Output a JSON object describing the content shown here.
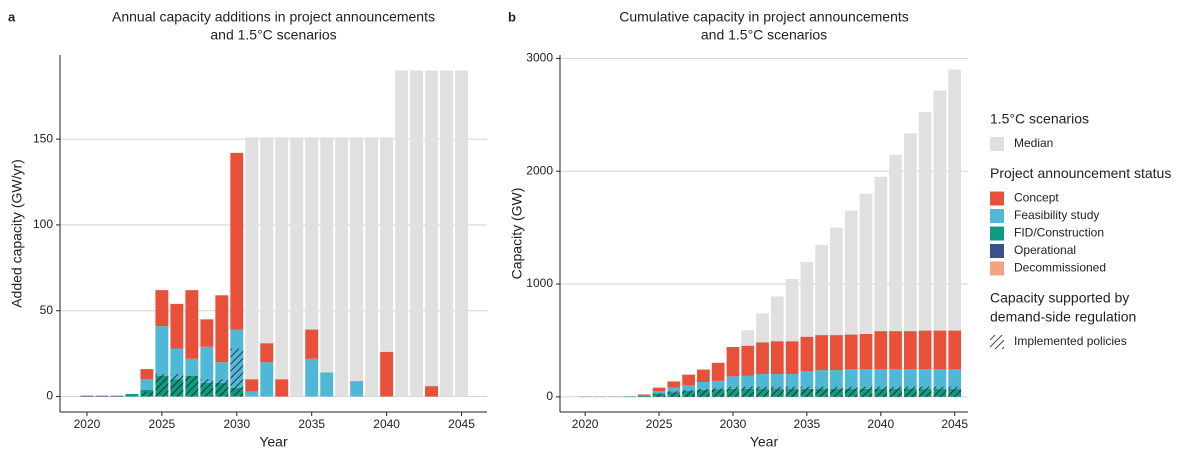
{
  "chart_data": [
    {
      "type": "bar",
      "label": "a",
      "title": [
        "Annual capacity additions in project announcements",
        "and 1.5°C scenarios"
      ],
      "x_label": "Year",
      "y_label": "Added capacity (GW/yr)",
      "x": [
        2020,
        2021,
        2022,
        2023,
        2024,
        2025,
        2026,
        2027,
        2028,
        2029,
        2030,
        2031,
        2032,
        2033,
        2034,
        2035,
        2036,
        2037,
        2038,
        2039,
        2040,
        2041,
        2042,
        2043,
        2044,
        2045
      ],
      "xlim": [
        2018.2,
        2046.7
      ],
      "xticks": [
        2020,
        2025,
        2030,
        2035,
        2040,
        2045
      ],
      "ylim": [
        -9,
        199
      ],
      "yticks": [
        0,
        50,
        100,
        150
      ],
      "grid": true,
      "series": [
        {
          "name": "Median",
          "color": "#e0e0e0",
          "overlay": true,
          "values": [
            null,
            null,
            null,
            null,
            null,
            null,
            null,
            null,
            null,
            null,
            null,
            151,
            151,
            151,
            151,
            151,
            151,
            151,
            151,
            151,
            151,
            190,
            190,
            190,
            190,
            190
          ]
        },
        {
          "name": "Concept",
          "color": "#e8503a",
          "values": [
            0,
            0,
            0,
            0,
            6,
            21,
            26,
            40,
            16,
            39,
            103,
            7,
            11,
            10,
            0,
            17,
            0,
            0,
            0,
            0,
            26,
            0,
            0,
            6,
            0,
            0
          ]
        },
        {
          "name": "Feasibility study",
          "color": "#4fb8d6",
          "values": [
            0,
            0,
            0,
            0,
            6,
            29,
            18,
            10,
            21,
            12,
            34,
            3,
            20,
            0,
            0,
            22,
            14,
            0,
            9,
            0,
            0,
            0,
            0,
            0,
            0,
            0
          ]
        },
        {
          "name": "FID/Construction",
          "color": "#0e9b82",
          "values": [
            0,
            0,
            0,
            1.5,
            4,
            12,
            10,
            12,
            8,
            8,
            5,
            0,
            0,
            0,
            0,
            0,
            0,
            0,
            0,
            0,
            0,
            0,
            0,
            0,
            0,
            0
          ]
        },
        {
          "name": "Operational",
          "color": "#3b4f8a",
          "values": [
            0.5,
            0.5,
            0.5,
            0,
            0,
            0,
            0,
            0,
            0,
            0,
            0,
            0,
            0,
            0,
            0,
            0,
            0,
            0,
            0,
            0,
            0,
            0,
            0,
            0,
            0,
            0
          ]
        },
        {
          "name": "Decommissioned",
          "color": "#f3a284",
          "values": [
            0,
            0,
            0,
            0,
            0,
            0,
            0,
            0,
            0,
            0,
            0,
            0,
            0,
            0,
            0,
            0,
            0,
            0,
            0,
            0,
            0,
            0,
            0,
            0,
            0,
            0
          ]
        },
        {
          "name": "Implemented policies",
          "color": "#1a1a1a",
          "pattern": "hatch",
          "overlay": true,
          "values": [
            null,
            null,
            null,
            null,
            3,
            13,
            13,
            12,
            10,
            10,
            28,
            null,
            null,
            null,
            null,
            null,
            null,
            null,
            null,
            null,
            null,
            null,
            null,
            null,
            null,
            null
          ]
        }
      ]
    },
    {
      "type": "bar",
      "label": "b",
      "title": [
        "Cumulative capacity in project announcements",
        "and 1.5°C scenarios"
      ],
      "x_label": "Year",
      "y_label": "Capacity (GW)",
      "x": [
        2020,
        2021,
        2022,
        2023,
        2024,
        2025,
        2026,
        2027,
        2028,
        2029,
        2030,
        2031,
        2032,
        2033,
        2034,
        2035,
        2036,
        2037,
        2038,
        2039,
        2040,
        2041,
        2042,
        2043,
        2044,
        2045
      ],
      "xlim": [
        2018.3,
        2045.9
      ],
      "xticks": [
        2020,
        2025,
        2030,
        2035,
        2040,
        2045
      ],
      "ylim": [
        -134,
        3030
      ],
      "yticks": [
        0,
        1000,
        2000,
        3000
      ],
      "grid": true,
      "series": [
        {
          "name": "Median",
          "color": "#e0e0e0",
          "overlay": true,
          "values": [
            null,
            null,
            null,
            null,
            null,
            null,
            null,
            null,
            null,
            null,
            null,
            590,
            740,
            890,
            1045,
            1195,
            1345,
            1500,
            1650,
            1800,
            1950,
            2145,
            2335,
            2525,
            2715,
            2900
          ]
        },
        {
          "name": "Concept",
          "color": "#e8503a",
          "values": [
            0,
            0,
            0,
            0,
            5,
            30,
            55,
            95,
            110,
            160,
            260,
            265,
            280,
            290,
            290,
            305,
            310,
            310,
            305,
            310,
            335,
            335,
            335,
            340,
            340,
            340
          ]
        },
        {
          "name": "Feasibility study",
          "color": "#4fb8d6",
          "values": [
            0,
            0,
            0,
            0,
            5,
            20,
            40,
            50,
            70,
            75,
            110,
            115,
            130,
            130,
            130,
            155,
            165,
            165,
            175,
            175,
            175,
            175,
            175,
            175,
            175,
            175
          ]
        },
        {
          "name": "FID/Construction",
          "color": "#0e9b82",
          "values": [
            0,
            0,
            0,
            3,
            10,
            30,
            40,
            50,
            60,
            65,
            70,
            70,
            70,
            70,
            70,
            70,
            70,
            70,
            70,
            70,
            70,
            70,
            70,
            70,
            70,
            70
          ]
        },
        {
          "name": "Operational",
          "color": "#3b4f8a",
          "values": [
            2,
            2,
            2,
            2,
            2,
            2,
            2,
            2,
            2,
            2,
            2,
            2,
            2,
            2,
            2,
            2,
            2,
            2,
            2,
            2,
            2,
            2,
            2,
            2,
            2,
            2
          ]
        },
        {
          "name": "Decommissioned",
          "color": "#f3a284",
          "values": [
            0,
            0,
            0,
            0,
            0,
            0,
            0,
            0,
            0,
            0,
            0,
            0,
            0,
            0,
            0,
            0,
            0,
            0,
            0,
            0,
            0,
            0,
            0,
            0,
            0,
            0
          ]
        },
        {
          "name": "Implemented policies",
          "color": "#1a1a1a",
          "pattern": "hatch",
          "overlay": true,
          "values": [
            null,
            null,
            null,
            null,
            null,
            30,
            50,
            60,
            70,
            75,
            90,
            90,
            90,
            90,
            90,
            90,
            90,
            90,
            90,
            90,
            90,
            90,
            90,
            90,
            90,
            90
          ]
        }
      ]
    }
  ],
  "legend": {
    "titles": [
      [
        "1.5°C scenarios"
      ],
      [
        "Project announcement status"
      ],
      [
        "Capacity supported by",
        "demand-side regulation"
      ]
    ]
  }
}
